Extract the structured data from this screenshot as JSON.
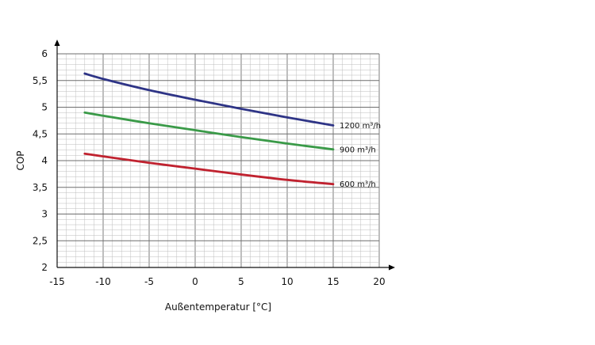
{
  "chart_data": {
    "type": "line",
    "title": "",
    "xlabel": "Außentemperatur [°C]",
    "ylabel": "COP",
    "xlim": [
      -15,
      20
    ],
    "ylim": [
      2,
      6
    ],
    "x_ticks": [
      "-15",
      "-10",
      "-5",
      "0",
      "5",
      "10",
      "15",
      "20"
    ],
    "y_ticks": [
      "2",
      "2,5",
      "3",
      "3,5",
      "4",
      "4,5",
      "5",
      "5,5",
      "6"
    ],
    "grid": true,
    "legend": "inline-right",
    "series": [
      {
        "name": "1200 m³/h",
        "color": "#2e3486",
        "x": [
          -12,
          -10,
          -5,
          0,
          5,
          10,
          15
        ],
        "y": [
          5.63,
          5.53,
          5.32,
          5.14,
          4.97,
          4.81,
          4.66
        ]
      },
      {
        "name": "900 m³/h",
        "color": "#3a9a48",
        "x": [
          -12,
          -10,
          -5,
          0,
          5,
          10,
          15
        ],
        "y": [
          4.9,
          4.84,
          4.7,
          4.57,
          4.44,
          4.32,
          4.21
        ]
      },
      {
        "name": "600 m³/h",
        "color": "#c0222f",
        "x": [
          -12,
          -10,
          -5,
          0,
          5,
          10,
          15
        ],
        "y": [
          4.13,
          4.08,
          3.96,
          3.85,
          3.74,
          3.64,
          3.56
        ]
      }
    ]
  }
}
